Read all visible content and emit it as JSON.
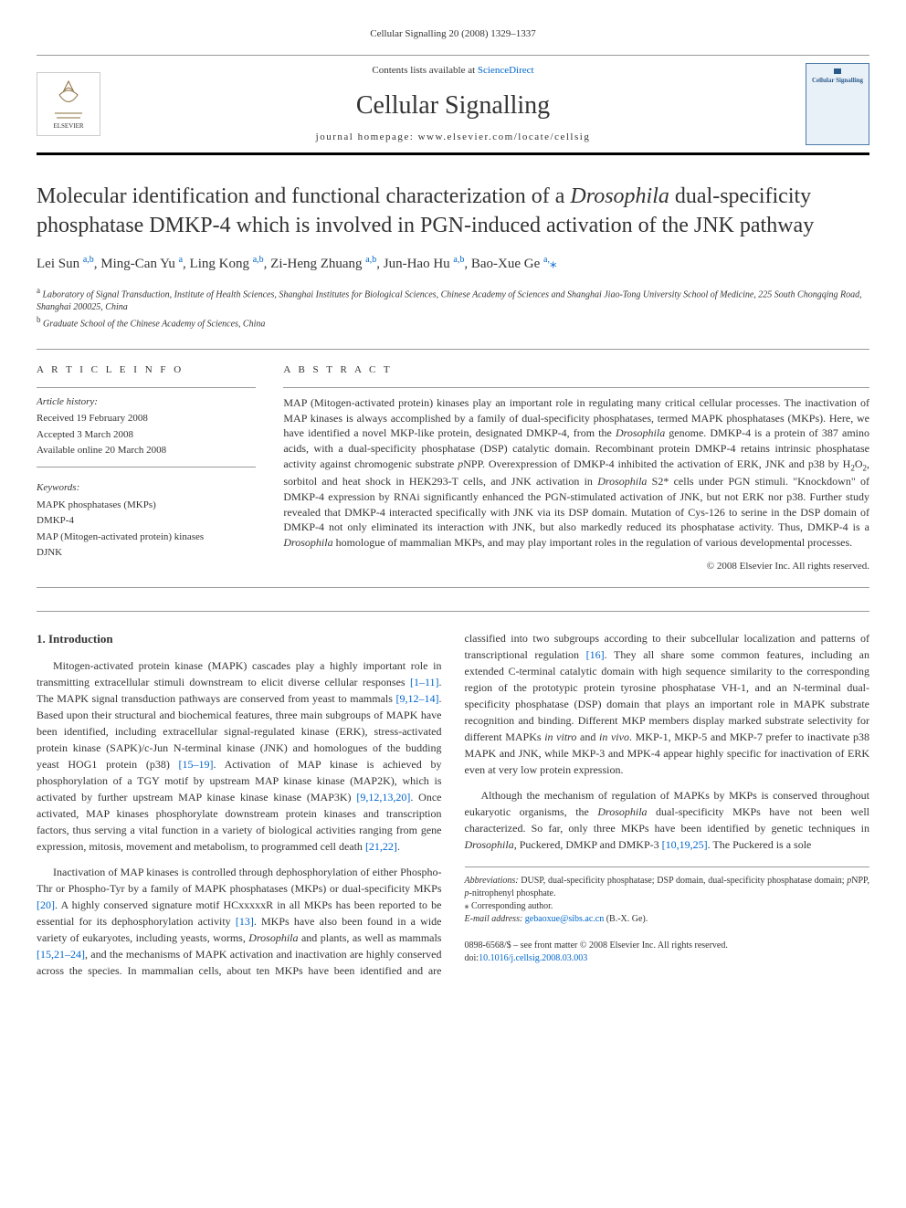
{
  "header_ref": "Cellular Signalling 20 (2008) 1329–1337",
  "masthead": {
    "contents_prefix": "Contents lists available at ",
    "contents_link": "ScienceDirect",
    "journal_name": "Cellular Signalling",
    "homepage_label": "journal homepage: www.elsevier.com/locate/cellsig",
    "publisher": "ELSEVIER",
    "cover_text": "Cellular Signalling"
  },
  "title_pre": "Molecular identification and functional characterization of a ",
  "title_italic": "Drosophila",
  "title_post": " dual-specificity phosphatase DMKP-4 which is involved in PGN-induced activation of the JNK pathway",
  "authors_html": "Lei Sun <sup>a,b</sup>, Ming-Can Yu <sup>a</sup>, Ling Kong <sup>a,b</sup>, Zi-Heng Zhuang <sup>a,b</sup>, Jun-Hao Hu <sup>a,b</sup>, Bao-Xue Ge <sup>a,</sup><span class='star'>⁎</span>",
  "affiliations": {
    "a": "Laboratory of Signal Transduction, Institute of Health Sciences, Shanghai Institutes for Biological Sciences, Chinese Academy of Sciences and Shanghai Jiao-Tong University School of Medicine, 225 South Chongqing Road, Shanghai 200025, China",
    "b": "Graduate School of the Chinese Academy of Sciences, China"
  },
  "article_info": {
    "heading": "A R T I C L E   I N F O",
    "history_label": "Article history:",
    "received": "Received 19 February 2008",
    "accepted": "Accepted 3 March 2008",
    "online": "Available online 20 March 2008",
    "keywords_label": "Keywords:",
    "keywords": [
      "MAPK phosphatases (MKPs)",
      "DMKP-4",
      "MAP (Mitogen-activated protein) kinases",
      "DJNK"
    ]
  },
  "abstract": {
    "heading": "A B S T R A C T",
    "text_parts": [
      "MAP (Mitogen-activated protein) kinases play an important role in regulating many critical cellular processes. The inactivation of MAP kinases is always accomplished by a family of dual-specificity phosphatases, termed MAPK phosphatases (MKPs). Here, we have identified a novel MKP-like protein, designated DMKP-4, from the ",
      "Drosophila",
      " genome. DMKP-4 is a protein of 387 amino acids, with a dual-specificity phosphatase (DSP) catalytic domain. Recombinant protein DMKP-4 retains intrinsic phosphatase activity against chromogenic substrate ",
      "p",
      "NPP. Overexpression of DMKP-4 inhibited the activation of ERK, JNK and p38 by H",
      "2",
      "O",
      "2",
      ", sorbitol and heat shock in HEK293-T cells, and JNK activation in ",
      "Drosophila",
      " S2* cells under PGN stimuli. \"Knockdown\" of DMKP-4 expression by RNAi significantly enhanced the PGN-stimulated activation of JNK, but not ERK nor p38. Further study revealed that DMKP-4 interacted specifically with JNK via its DSP domain. Mutation of Cys-126 to serine in the DSP domain of DMKP-4 not only eliminated its interaction with JNK, but also markedly reduced its phosphatase activity. Thus, DMKP-4 is a ",
      "Drosophila",
      " homologue of mammalian MKPs, and may play important roles in the regulation of various developmental processes."
    ],
    "copyright": "© 2008 Elsevier Inc. All rights reserved."
  },
  "introduction": {
    "heading": "1. Introduction",
    "p1_parts": [
      "Mitogen-activated protein kinase (MAPK) cascades play a highly important role in transmitting extracellular stimuli downstream to elicit diverse cellular responses ",
      "[1–11]",
      ". The MAPK signal transduction pathways are conserved from yeast to mammals ",
      "[9,12–14]",
      ". Based upon their structural and biochemical features, three main subgroups of MAPK have been identified, including extracellular signal-regulated kinase (ERK), stress-activated protein kinase (SAPK)/c-Jun N-terminal kinase (JNK) and homologues of the budding yeast HOG1 protein (p38) ",
      "[15–19]",
      ". Activation of MAP kinase is achieved by phosphorylation of a TGY motif by upstream MAP kinase kinase (MAP2K), which is activated by further upstream MAP kinase kinase kinase (MAP3K) ",
      "[9,12,13,20]",
      ". Once activated, MAP kinases phosphorylate downstream protein kinases and transcription factors, thus serving a vital function in a variety of biological activities ranging from gene expression, mitosis, movement and metabolism, to programmed cell death ",
      "[21,22]",
      "."
    ],
    "p2_parts": [
      "Inactivation of MAP kinases is controlled through dephosphorylation of either Phospho-Thr or Phospho-Tyr by a family of MAPK phosphatases (MKPs) or dual-specificity MKPs ",
      "[20]",
      ". A highly conserved signature motif HCxxxxxR in all MKPs has been reported to be essential for its dephosphorylation activity ",
      "[13]",
      ". MKPs have also been found in a wide variety of eukaryotes, including yeasts, worms, ",
      "Drosophila",
      " and plants, as well as mammals ",
      "[15,21–24]",
      ", and the mechanisms of MAPK activation and inactivation are highly conserved across the species. In mammalian cells, about ten MKPs have been identified and are classified into two subgroups according to their subcellular localization and patterns of transcriptional regulation ",
      "[16]",
      ". They all share some common features, including an extended C-terminal catalytic domain with high sequence similarity to the corresponding region of the prototypic protein tyrosine phosphatase VH-1, and an N-terminal dual-specificity phosphatase (DSP) domain that plays an important role in MAPK substrate recognition and binding. Different MKP members display marked substrate selectivity for different MAPKs ",
      "in vitro",
      " and ",
      "in vivo",
      ". MKP-1, MKP-5 and MKP-7 prefer to inactivate p38 MAPK and JNK, while MKP-3 and MPK-4 appear highly specific for inactivation of ERK even at very low protein expression."
    ],
    "p3_parts": [
      "Although the mechanism of regulation of MAPKs by MKPs is conserved throughout eukaryotic organisms, the ",
      "Drosophila",
      " dual-specificity MKPs have not been well characterized. So far, only three MKPs have been identified by genetic techniques in ",
      "Drosophila",
      ", Puckered, DMKP and DMKP-3 ",
      "[10,19,25]",
      ". The Puckered is a sole"
    ]
  },
  "footnotes": {
    "abbrev_label": "Abbreviations:",
    "abbrev_text": " DUSP, dual-specificity phosphatase; DSP domain, dual-specificity phosphatase domain; ",
    "abbrev_pnpp_p": "p",
    "abbrev_pnpp_rest": "NPP, ",
    "abbrev_pnp_p": "p",
    "abbrev_pnp_rest": "-nitrophenyl phosphate.",
    "corresponding": "⁎ Corresponding author.",
    "email_label": "E-mail address:",
    "email": "gebaoxue@sibs.ac.cn",
    "email_suffix": " (B.-X. Ge)."
  },
  "bottom": {
    "issn_line": "0898-6568/$ – see front matter © 2008 Elsevier Inc. All rights reserved.",
    "doi_prefix": "doi:",
    "doi": "10.1016/j.cellsig.2008.03.003"
  },
  "colors": {
    "link": "#0066cc",
    "text": "#333333",
    "border": "#999999"
  }
}
